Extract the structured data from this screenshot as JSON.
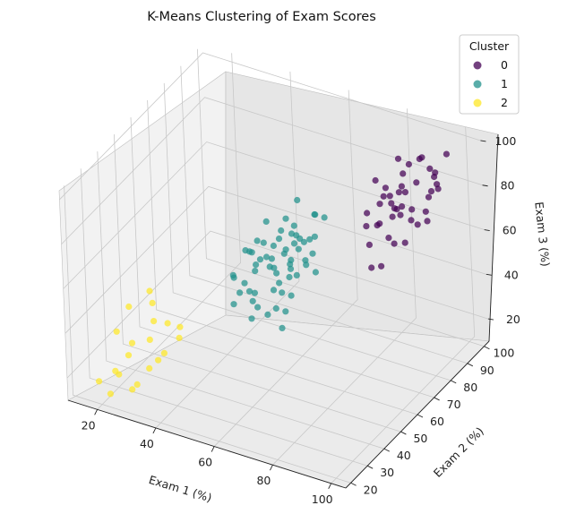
{
  "chart_data": {
    "type": "scatter",
    "projection": "3d",
    "title": "K-Means Clustering of Exam Scores",
    "xlabel": "Exam 1 (%)",
    "ylabel": "Exam 2 (%)",
    "zlabel": "Exam 3 (%)",
    "xlim": [
      10,
      105
    ],
    "ylim": [
      17,
      103
    ],
    "zlim": [
      10,
      104
    ],
    "xticks": [
      20,
      40,
      60,
      80,
      100
    ],
    "yticks": [
      20,
      30,
      40,
      50,
      60,
      70,
      80,
      90,
      100
    ],
    "zticks": [
      20,
      40,
      60,
      80,
      100
    ],
    "grid": true,
    "legend": {
      "title": "Cluster",
      "position": "top-right"
    },
    "series": [
      {
        "name": "0",
        "color": "#440154",
        "points": [
          [
            88,
            90,
            72
          ],
          [
            92,
            95,
            78
          ],
          [
            85,
            88,
            80
          ],
          [
            90,
            98,
            85
          ],
          [
            95,
            92,
            88
          ],
          [
            80,
            85,
            75
          ],
          [
            82,
            90,
            70
          ],
          [
            87,
            80,
            82
          ],
          [
            93,
            85,
            90
          ],
          [
            78,
            92,
            76
          ],
          [
            84,
            96,
            86
          ],
          [
            91,
            88,
            68
          ],
          [
            86,
            82,
            74
          ],
          [
            89,
            94,
            92
          ],
          [
            83,
            78,
            72
          ],
          [
            96,
            98,
            94
          ],
          [
            79,
            86,
            65
          ],
          [
            88,
            76,
            70
          ],
          [
            94,
            90,
            80
          ],
          [
            81,
            95,
            88
          ],
          [
            85,
            84,
            60
          ],
          [
            90,
            80,
            78
          ],
          [
            77,
            88,
            82
          ],
          [
            92,
            99,
            76
          ],
          [
            87,
            91,
            66
          ],
          [
            84,
            72,
            58
          ],
          [
            80,
            78,
            62
          ],
          [
            89,
            85,
            84
          ],
          [
            95,
            87,
            72
          ],
          [
            83,
            93,
            78
          ],
          [
            86,
            89,
            88
          ],
          [
            91,
            93,
            70
          ],
          [
            78,
            80,
            68
          ],
          [
            88,
            97,
            90
          ],
          [
            82,
            84,
            80
          ],
          [
            94,
            95,
            82
          ],
          [
            80,
            91,
            74
          ],
          [
            85,
            76,
            56
          ],
          [
            87,
            86,
            76
          ],
          [
            90,
            82,
            64
          ],
          [
            76,
            84,
            70
          ],
          [
            93,
            96,
            86
          ],
          [
            84,
            88,
            72
          ]
        ]
      },
      {
        "name": "1",
        "color": "#21918c",
        "points": [
          [
            55,
            60,
            60
          ],
          [
            60,
            65,
            55
          ],
          [
            58,
            58,
            62
          ],
          [
            65,
            70,
            58
          ],
          [
            50,
            55,
            50
          ],
          [
            62,
            68,
            65
          ],
          [
            57,
            62,
            52
          ],
          [
            53,
            57,
            58
          ],
          [
            66,
            64,
            60
          ],
          [
            59,
            70,
            68
          ],
          [
            48,
            52,
            55
          ],
          [
            61,
            58,
            48
          ],
          [
            56,
            66,
            64
          ],
          [
            63,
            72,
            62
          ],
          [
            52,
            60,
            66
          ],
          [
            67,
            68,
            52
          ],
          [
            54,
            54,
            48
          ],
          [
            58,
            64,
            70
          ],
          [
            60,
            56,
            42
          ],
          [
            64,
            74,
            72
          ],
          [
            49,
            58,
            62
          ],
          [
            55,
            50,
            40
          ],
          [
            62,
            62,
            56
          ],
          [
            57,
            68,
            58
          ],
          [
            51,
            56,
            46
          ],
          [
            66,
            70,
            66
          ],
          [
            53,
            64,
            72
          ],
          [
            59,
            60,
            50
          ],
          [
            61,
            72,
            60
          ],
          [
            48,
            62,
            58
          ],
          [
            56,
            52,
            44
          ],
          [
            65,
            66,
            56
          ],
          [
            52,
            58,
            54
          ],
          [
            58,
            74,
            76
          ],
          [
            63,
            60,
            46
          ],
          [
            54,
            66,
            60
          ],
          [
            60,
            68,
            62
          ],
          [
            57,
            56,
            38
          ],
          [
            50,
            60,
            60
          ],
          [
            64,
            62,
            54
          ],
          [
            55,
            72,
            68
          ],
          [
            62,
            58,
            40
          ],
          [
            47,
            54,
            52
          ],
          [
            59,
            66,
            48
          ],
          [
            53,
            62,
            64
          ],
          [
            66,
            76,
            70
          ],
          [
            56,
            60,
            56
          ],
          [
            61,
            64,
            58
          ],
          [
            50,
            52,
            48
          ],
          [
            58,
            70,
            64
          ],
          [
            63,
            54,
            36
          ],
          [
            52,
            56,
            42
          ],
          [
            60,
            62,
            62
          ],
          [
            55,
            64,
            52
          ],
          [
            65,
            72,
            74
          ],
          [
            49,
            50,
            44
          ],
          [
            57,
            60,
            46
          ],
          [
            62,
            66,
            68
          ],
          [
            54,
            58,
            60
          ],
          [
            59,
            72,
            56
          ]
        ]
      },
      {
        "name": "2",
        "color": "#fde725",
        "points": [
          [
            20,
            30,
            35
          ],
          [
            25,
            28,
            28
          ],
          [
            30,
            35,
            40
          ],
          [
            22,
            25,
            22
          ],
          [
            28,
            38,
            45
          ],
          [
            35,
            32,
            30
          ],
          [
            18,
            22,
            18
          ],
          [
            32,
            28,
            25
          ],
          [
            26,
            40,
            48
          ],
          [
            38,
            36,
            35
          ],
          [
            24,
            32,
            30
          ],
          [
            30,
            24,
            20
          ],
          [
            21,
            36,
            42
          ],
          [
            34,
            30,
            28
          ],
          [
            27,
            26,
            15
          ],
          [
            33,
            38,
            38
          ],
          [
            23,
            20,
            16
          ],
          [
            29,
            34,
            32
          ],
          [
            36,
            40,
            36
          ],
          [
            25,
            22,
            24
          ]
        ]
      }
    ]
  }
}
